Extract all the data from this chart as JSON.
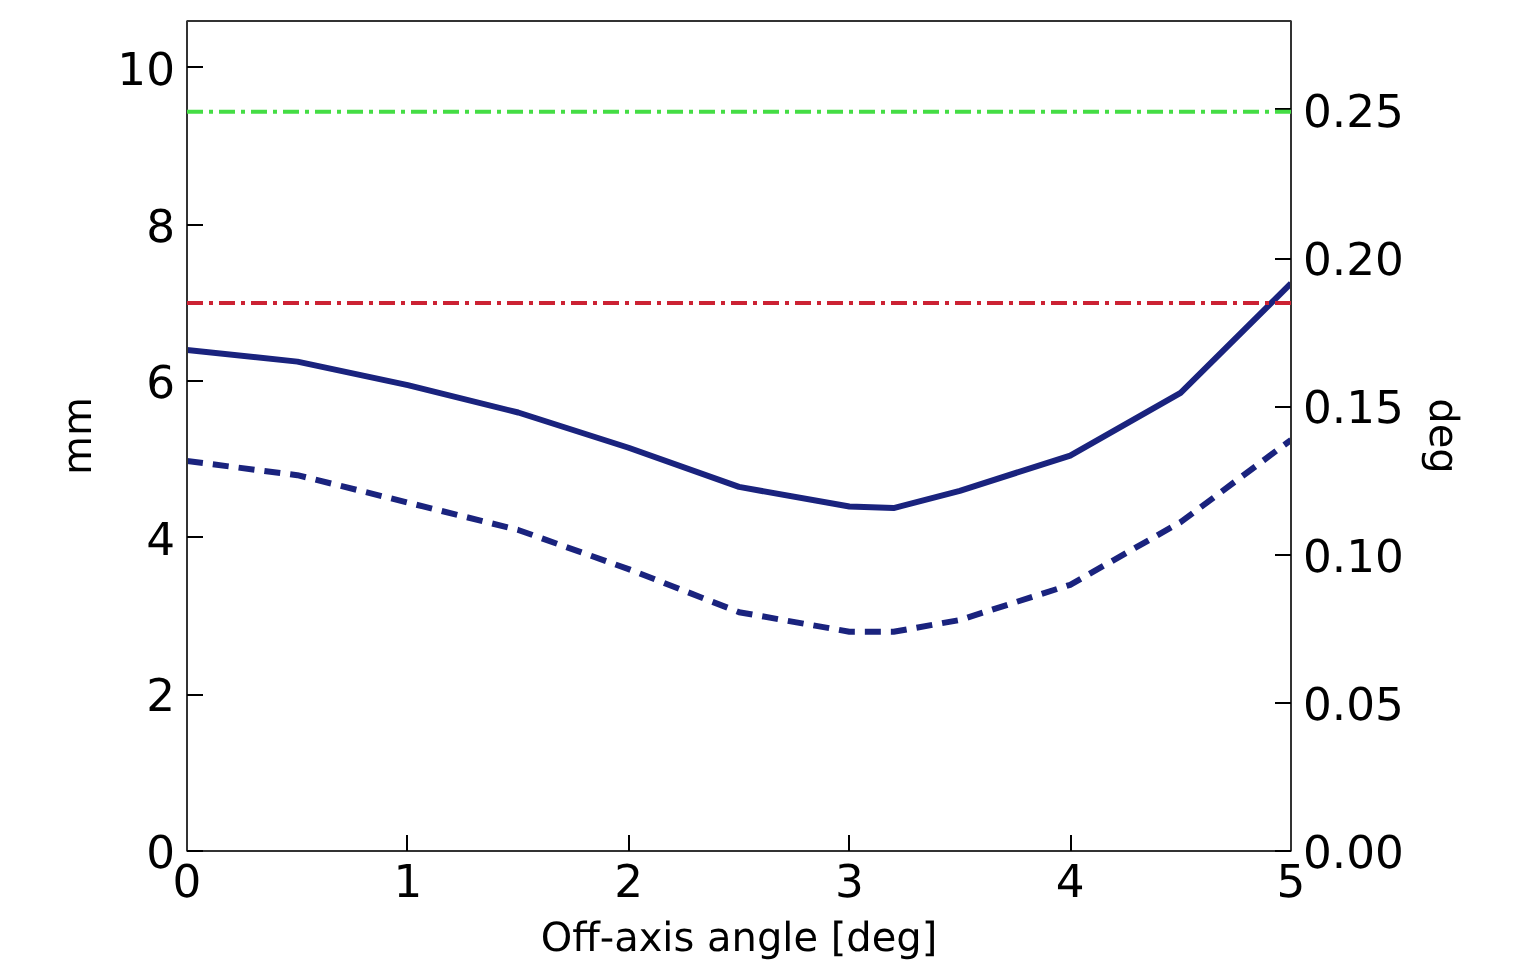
{
  "chart_data": {
    "type": "line",
    "xlabel": "Off-axis angle [deg]",
    "ylabel": "mm",
    "y2label": "deg",
    "xlim": [
      0,
      5
    ],
    "xticks": [
      0,
      1,
      2,
      3,
      4,
      5
    ],
    "ylim": [
      0,
      10.6
    ],
    "yticks": [
      0,
      2,
      4,
      6,
      8,
      10
    ],
    "y2lim": [
      0,
      0.28
    ],
    "y2ticks": [
      {
        "value": 0,
        "label": "0.00"
      },
      {
        "value": 0.05,
        "label": "0.05"
      },
      {
        "value": 0.1,
        "label": "0.10"
      },
      {
        "value": 0.15,
        "label": "0.15"
      },
      {
        "value": 0.2,
        "label": "0.20"
      },
      {
        "value": 0.25,
        "label": "0.25"
      }
    ],
    "x": [
      0,
      0.5,
      1,
      1.5,
      2,
      2.5,
      3,
      3.2,
      3.5,
      4,
      4.5,
      5
    ],
    "series": [
      {
        "color": "#1a237e",
        "line_style": "solid",
        "values": [
          6.4,
          6.25,
          5.95,
          5.6,
          5.15,
          4.65,
          4.4,
          4.38,
          4.6,
          5.05,
          5.85,
          7.25
        ]
      },
      {
        "color": "#1a237e",
        "line_style": "dashed",
        "values": [
          4.98,
          4.8,
          4.45,
          4.1,
          3.6,
          3.05,
          2.8,
          2.8,
          2.95,
          3.4,
          4.2,
          5.25
        ]
      }
    ],
    "ref_lines": [
      {
        "axis": "y",
        "value": 9.44,
        "color": "#44dd44",
        "line_style": "dashdot"
      },
      {
        "axis": "y",
        "value": 7.0,
        "color": "#cc2233",
        "line_style": "dashdot"
      }
    ]
  }
}
